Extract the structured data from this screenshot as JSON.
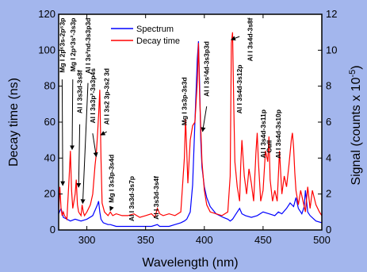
{
  "chart_data": {
    "type": "line",
    "xlabel": "Wavelength (nm)",
    "ylabel": "Decay time (ns)",
    "y2label_parts": {
      "main": "Signal (counts x 10",
      "sup": "-5",
      "close": ")"
    },
    "xlim": [
      276,
      500
    ],
    "ylim": [
      0,
      120
    ],
    "y2lim": [
      0,
      12
    ],
    "xticks": [
      300,
      350,
      400,
      450,
      500
    ],
    "yticks": [
      0,
      20,
      40,
      60,
      80,
      100,
      120
    ],
    "y2ticks": [
      0,
      2,
      4,
      6,
      8,
      10,
      12
    ],
    "legend_position": "top-center",
    "series": [
      {
        "name": "Spectrum",
        "axis": "right",
        "color": "#0000ff",
        "x": [
          276,
          278,
          280,
          283,
          286,
          290,
          295,
          300,
          305,
          309,
          310,
          311,
          312,
          314,
          318,
          320,
          325,
          330,
          335,
          340,
          345,
          350,
          355,
          360,
          362,
          365,
          370,
          375,
          380,
          383,
          385,
          388,
          390,
          392,
          394,
          395,
          396,
          397,
          398,
          400,
          402,
          405,
          410,
          413,
          416,
          420,
          422,
          424,
          426,
          428,
          430,
          432,
          435,
          440,
          445,
          450,
          455,
          460,
          463,
          466,
          470,
          473,
          476,
          478,
          480,
          483,
          485,
          486,
          488,
          490,
          495,
          500
        ],
        "y": [
          0.9,
          1.2,
          0.7,
          0.6,
          0.5,
          0.6,
          0.5,
          0.6,
          0.8,
          1.4,
          1.6,
          1.0,
          0.6,
          0.4,
          0.3,
          0.3,
          0.2,
          0.2,
          0.2,
          0.2,
          0.2,
          0.2,
          0.2,
          0.3,
          0.2,
          0.2,
          0.2,
          0.3,
          0.4,
          0.5,
          0.6,
          1.0,
          2.5,
          6.0,
          9.5,
          10.5,
          8.0,
          5.0,
          3.5,
          2.4,
          1.8,
          1.3,
          0.9,
          0.8,
          0.7,
          0.6,
          0.5,
          0.6,
          0.8,
          1.0,
          1.2,
          0.9,
          0.8,
          0.7,
          0.8,
          1.0,
          0.9,
          0.8,
          1.0,
          0.9,
          1.2,
          1.5,
          1.3,
          1.8,
          1.2,
          0.9,
          1.3,
          2.2,
          1.0,
          0.8,
          0.5,
          0.4
        ]
      },
      {
        "name": "Decay time",
        "axis": "left",
        "color": "#ff0000",
        "x": [
          276,
          277,
          278,
          279,
          280,
          281,
          283,
          285,
          286,
          287,
          288,
          290,
          291,
          292,
          293,
          295,
          296,
          297,
          298,
          300,
          303,
          305,
          307,
          308,
          309,
          310,
          311,
          312,
          313,
          315,
          318,
          320,
          322,
          325,
          330,
          335,
          340,
          345,
          350,
          355,
          358,
          360,
          362,
          365,
          370,
          375,
          380,
          383,
          384,
          385,
          386,
          388,
          390,
          392,
          394,
          395,
          396,
          398,
          400,
          402,
          405,
          410,
          415,
          420,
          422,
          423,
          424,
          425,
          426,
          428,
          430,
          431,
          432,
          434,
          436,
          438,
          440,
          442,
          444,
          445,
          446,
          448,
          450,
          452,
          454,
          455,
          456,
          458,
          460,
          462,
          464,
          465,
          466,
          468,
          470,
          472,
          474,
          475,
          476,
          477,
          478,
          480,
          482,
          484,
          486,
          488,
          490,
          492,
          495,
          498,
          500
        ],
        "y": [
          10,
          24,
          12,
          8,
          10,
          8,
          6,
          30,
          44,
          22,
          12,
          20,
          28,
          14,
          10,
          8,
          14,
          10,
          8,
          10,
          14,
          20,
          36,
          42,
          52,
          64,
          78,
          40,
          15,
          10,
          8,
          10,
          8,
          9,
          8,
          8,
          9,
          7,
          8,
          9,
          7,
          12,
          9,
          8,
          9,
          8,
          10,
          40,
          62,
          44,
          26,
          50,
          58,
          60,
          82,
          104,
          74,
          38,
          22,
          14,
          10,
          9,
          8,
          10,
          30,
          104,
          110,
          72,
          38,
          24,
          16,
          36,
          50,
          30,
          20,
          34,
          26,
          16,
          44,
          54,
          38,
          16,
          22,
          44,
          38,
          52,
          28,
          16,
          22,
          16,
          44,
          32,
          20,
          30,
          24,
          36,
          50,
          54,
          46,
          32,
          22,
          14,
          22,
          16,
          10,
          24,
          12,
          22,
          14,
          10,
          8
        ]
      }
    ],
    "annotations": [
      {
        "text": "Mg I 2p⁶3s-2p⁶3p",
        "x": 281,
        "y": 118,
        "arrow_to": [
          279.5,
          24
        ]
      },
      {
        "text": "Mg I 2p⁶3s²-3s3p",
        "x": 290,
        "y": 118,
        "arrow_to": [
          287.5,
          44
        ]
      },
      {
        "text": "Al I 3s3d-3s8f",
        "x": 296,
        "y": 89,
        "arrow_to": [
          293,
          23
        ]
      },
      {
        "text": "Al I 3s²nd-3s3p3d",
        "x": 303,
        "y": 118,
        "arrow_to": [
          296.5,
          14
        ]
      },
      {
        "text": "Al I 3s3p²-3s3p4s",
        "x": 307,
        "y": 90,
        "arrow_to": [
          308,
          40
        ]
      },
      {
        "text": "Al I 3s2 3p-3s2 3d",
        "x": 319,
        "y": 90,
        "arrow_to": [
          312,
          52
        ]
      },
      {
        "text": "Mg I 3s3p-3s4d",
        "x": 323,
        "y": 42,
        "arrow_to": [
          320,
          10
        ]
      },
      {
        "text": "Al I 3s3d-3s7p",
        "x": 340,
        "y": 30
      },
      {
        "text": "Al I 3s3d-3s4f",
        "x": 361,
        "y": 30
      },
      {
        "text": "Mg I 3s3p-3s3d",
        "x": 385,
        "y": 85
      },
      {
        "text": "Al I 3s²4d-3s3p3d",
        "x": 404,
        "y": 105,
        "arrow_to": [
          398.5,
          54
        ]
      },
      {
        "text": "Al I 3s4d-3s12p",
        "x": 432,
        "y": 92,
        "arrow_to": [
          423,
          105
        ]
      },
      {
        "text": "Al I 3s4d-3s8f",
        "x": 441,
        "y": 118
      },
      {
        "text": "Al I 3s4d-3s11p",
        "x": 452,
        "y": 67
      },
      {
        "text": "CuII",
        "x": 457,
        "y": 50
      },
      {
        "text": "Al I 3s4d-3s10p",
        "x": 465,
        "y": 67
      }
    ]
  }
}
